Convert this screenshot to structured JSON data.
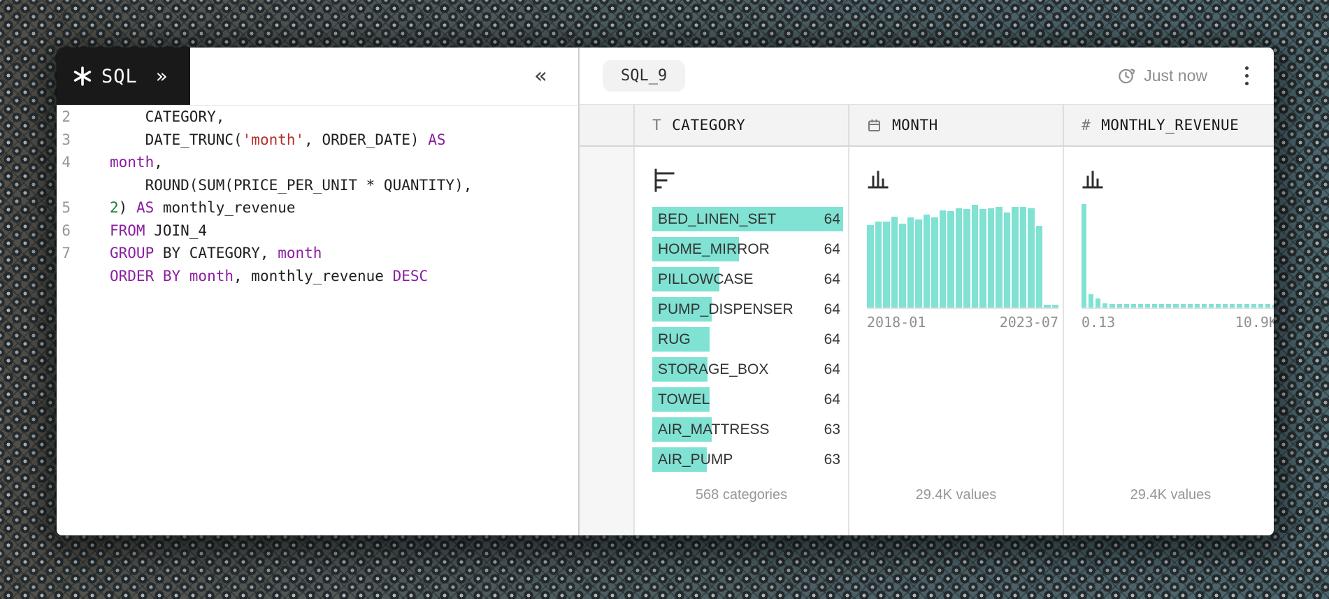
{
  "theme": {
    "accent_teal": "#7fe2d3",
    "keyword_color": "#8a1fa0",
    "string_color": "#b2302a",
    "number_color": "#15803d",
    "code_text_color": "#1f1f1f",
    "badge_bg": "#191919",
    "muted_text": "#8f8f8f"
  },
  "editor": {
    "badge": {
      "logo_icon": "asterisk-icon",
      "title": "SQL",
      "expand_icon": "»"
    },
    "collapse_icon": "«",
    "lines": [
      {
        "num": "2",
        "tokens": [
          {
            "t": "    CATEGORY,",
            "c": "plain"
          }
        ]
      },
      {
        "num": "3",
        "tokens": [
          {
            "t": "    DATE_TRUNC(",
            "c": "plain"
          },
          {
            "t": "'month'",
            "c": "string"
          },
          {
            "t": ", ORDER_DATE) ",
            "c": "plain"
          },
          {
            "t": "AS",
            "c": "keyword"
          }
        ]
      },
      {
        "num": "4",
        "tokens": [
          {
            "t": "month",
            "c": "keyword"
          },
          {
            "t": ",",
            "c": "plain"
          }
        ]
      },
      {
        "num": "",
        "tokens": [
          {
            "t": "    ROUND(SUM(PRICE_PER_UNIT * QUANTITY),",
            "c": "plain"
          }
        ]
      },
      {
        "num": "5",
        "tokens": [
          {
            "t": "2",
            "c": "number"
          },
          {
            "t": ") ",
            "c": "plain"
          },
          {
            "t": "AS",
            "c": "keyword"
          },
          {
            "t": " monthly_revenue",
            "c": "plain"
          }
        ]
      },
      {
        "num": "6",
        "tokens": [
          {
            "t": "FROM",
            "c": "keyword"
          },
          {
            "t": " JOIN_4",
            "c": "plain"
          }
        ]
      },
      {
        "num": "7",
        "tokens": [
          {
            "t": "GROUP",
            "c": "keyword"
          },
          {
            "t": " BY CATEGORY, ",
            "c": "plain"
          },
          {
            "t": "month",
            "c": "keyword"
          }
        ]
      },
      {
        "num": "",
        "tokens": [
          {
            "t": "ORDER BY month",
            "c": "keyword"
          },
          {
            "t": ", monthly_revenue ",
            "c": "plain"
          },
          {
            "t": "DESC",
            "c": "keyword"
          }
        ]
      }
    ]
  },
  "results": {
    "tab": "SQL_9",
    "last_run": "Just now",
    "last_run_icon": "clock-history-icon",
    "menu_icon": "kebab-menu-icon",
    "columns": [
      {
        "label": "CATEGORY",
        "type": "text",
        "type_glyph": "T",
        "summary_icon": "bar-list-icon",
        "footer": "568 categories",
        "categories": [
          {
            "label": "BED_LINEN_SET",
            "count": "64",
            "bar": 1.0
          },
          {
            "label": "HOME_MIRROR",
            "count": "64",
            "bar": 0.455
          },
          {
            "label": "PILLOWCASE",
            "count": "64",
            "bar": 0.35
          },
          {
            "label": "PUMP_DISPENSER",
            "count": "64",
            "bar": 0.31
          },
          {
            "label": "RUG",
            "count": "64",
            "bar": 0.3
          },
          {
            "label": "STORAGE_BOX",
            "count": "64",
            "bar": 0.29
          },
          {
            "label": "TOWEL",
            "count": "64",
            "bar": 0.3
          },
          {
            "label": "AIR_MATTRESS",
            "count": "63",
            "bar": 0.31
          },
          {
            "label": "AIR_PUMP",
            "count": "63",
            "bar": 0.285
          }
        ]
      },
      {
        "label": "MONTH",
        "type": "date",
        "type_icon": "calendar-icon",
        "summary_icon": "histogram-icon",
        "footer": "29.4K values",
        "axis_min": "2018-01",
        "axis_max": "2023-07",
        "histogram": [
          0.8,
          0.83,
          0.83,
          0.88,
          0.81,
          0.87,
          0.85,
          0.9,
          0.87,
          0.94,
          0.93,
          0.96,
          0.95,
          0.99,
          0.95,
          0.96,
          0.97,
          0.92,
          0.97,
          0.97,
          0.96,
          0.79,
          0.03,
          0.03
        ]
      },
      {
        "label": "MONTHLY_REVENUE",
        "type": "number",
        "type_glyph": "#",
        "summary_icon": "histogram-icon",
        "footer": "29.4K values",
        "axis_min": "0.13",
        "axis_max": "10.9K",
        "histogram": [
          1.0,
          0.13,
          0.09,
          0.04,
          0.035,
          0.035,
          0.035,
          0.035,
          0.035,
          0.035,
          0.035,
          0.035,
          0.035,
          0.035,
          0.035,
          0.035,
          0.035,
          0.035,
          0.035,
          0.035,
          0.035,
          0.035,
          0.035,
          0.035,
          0.035,
          0.035,
          0.035,
          0.03
        ]
      }
    ]
  }
}
